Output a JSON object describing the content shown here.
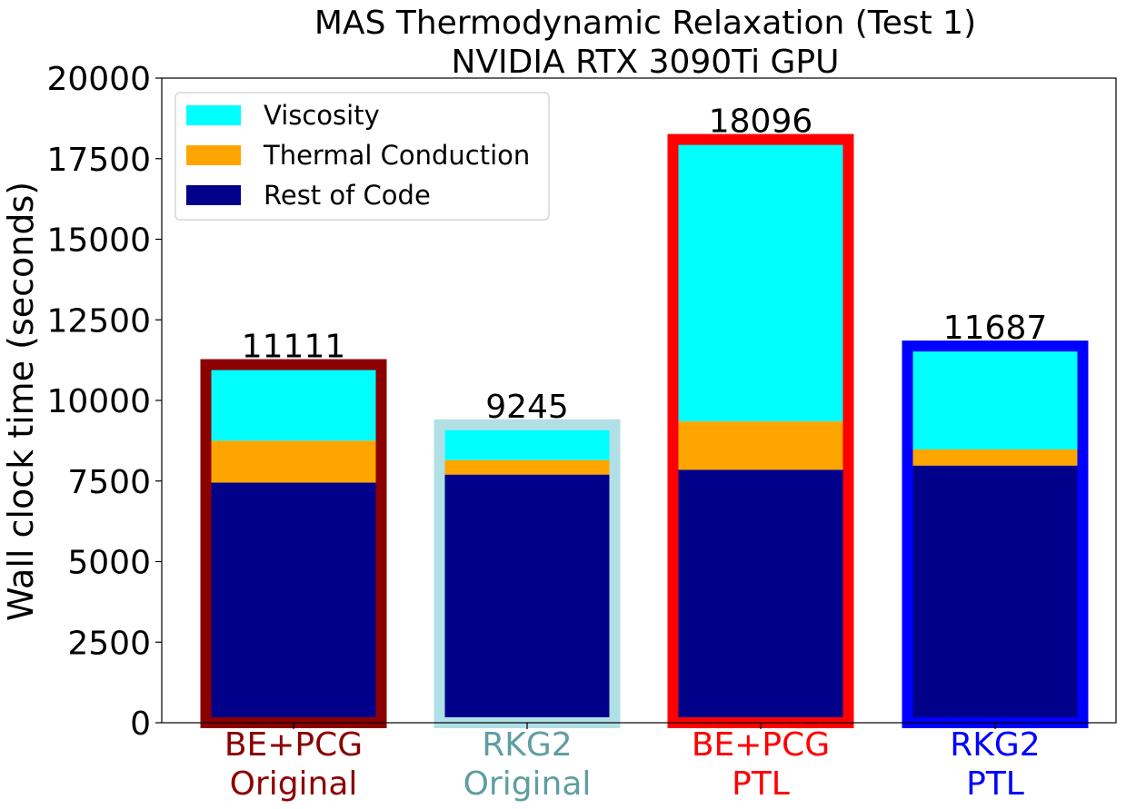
{
  "chart_data": {
    "type": "bar",
    "stacked": true,
    "title": "MAS Thermodynamic Relaxation (Test 1)",
    "subtitle": "NVIDIA RTX 3090Ti GPU",
    "xlabel": "",
    "ylabel": "Wall clock time (seconds)",
    "ylim": [
      0,
      20000
    ],
    "yticks": [
      0,
      2500,
      5000,
      7500,
      10000,
      12500,
      15000,
      17500,
      20000
    ],
    "categories": [
      {
        "line1": "BE+PCG",
        "line2": "Original",
        "color": "#8b0000"
      },
      {
        "line1": "RKG2",
        "line2": "Original",
        "color": "#5f9ea0"
      },
      {
        "line1": "BE+PCG",
        "line2": "PTL",
        "color": "#ff0000"
      },
      {
        "line1": "RKG2",
        "line2": "PTL",
        "color": "#0000ff"
      }
    ],
    "outline_colors": [
      "#8b0000",
      "#b0e0e6",
      "#ff0000",
      "#0000ff"
    ],
    "series": [
      {
        "name": "Rest of Code",
        "color": "#00008b",
        "values": [
          7450,
          7700,
          7850,
          7980
        ]
      },
      {
        "name": "Thermal Conduction",
        "color": "#ffa500",
        "values": [
          1300,
          450,
          1500,
          500
        ]
      },
      {
        "name": "Viscosity",
        "color": "#00ffff",
        "values": [
          2361,
          1095,
          8746,
          3207
        ]
      }
    ],
    "totals": [
      "11111",
      "9245",
      "18096",
      "11687"
    ],
    "legend": {
      "position": "upper-left",
      "order": [
        "Viscosity",
        "Thermal Conduction",
        "Rest of Code"
      ]
    },
    "grid": false
  }
}
